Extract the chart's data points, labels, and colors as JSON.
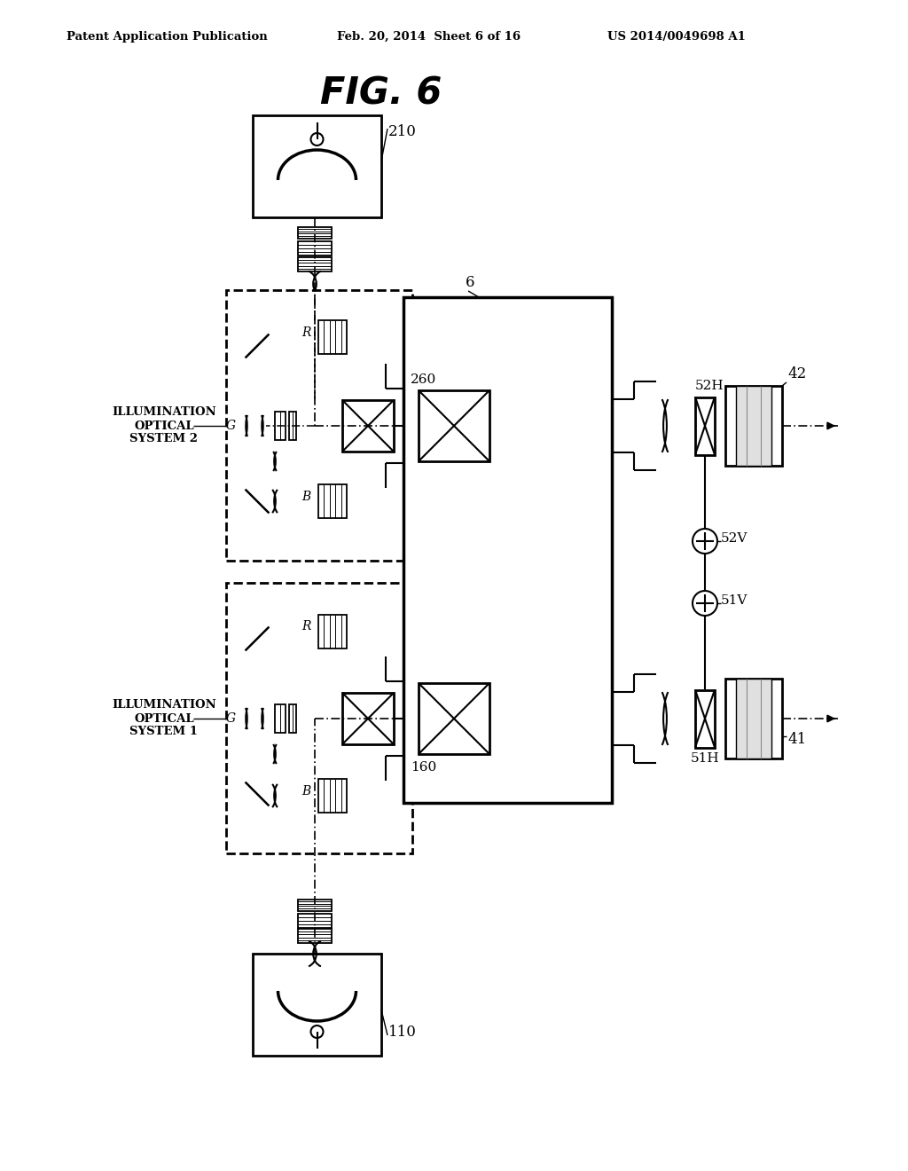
{
  "title": "FIG. 6",
  "header_left": "Patent Application Publication",
  "header_mid": "Feb. 20, 2014  Sheet 6 of 16",
  "header_right": "US 2014/0049698 A1",
  "bg_color": "#ffffff",
  "label_210": "210",
  "label_110": "110",
  "label_260": "260",
  "label_160": "160",
  "label_6": "6",
  "label_52H": "52H",
  "label_52V": "52V",
  "label_51H": "51H",
  "label_51V": "51V",
  "label_42": "42",
  "label_41": "41",
  "label_R": "R",
  "label_G": "G",
  "label_B": "B",
  "label_illum2": "ILLUMINATION\nOPTICAL\nSYSTEM 2",
  "label_illum1": "ILLUMINATION\nOPTICAL\nSYSTEM 1"
}
